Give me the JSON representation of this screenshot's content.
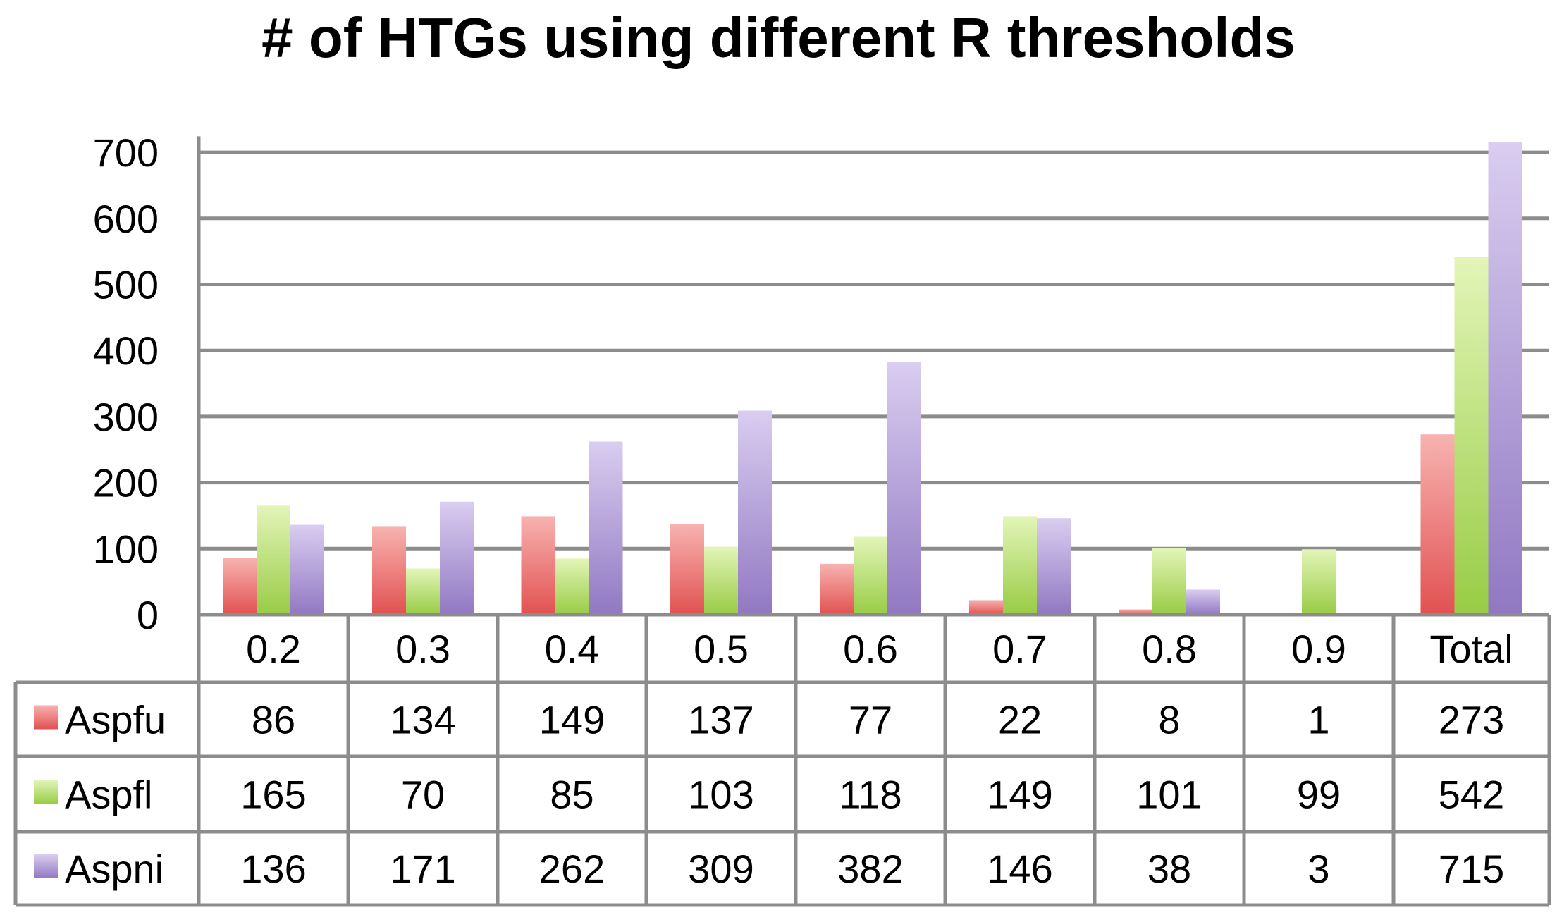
{
  "chart_data": {
    "type": "bar",
    "title": "# of HTGs using different R thresholds",
    "categories": [
      "0.2",
      "0.3",
      "0.4",
      "0.5",
      "0.6",
      "0.7",
      "0.8",
      "0.9",
      "Total"
    ],
    "series": [
      {
        "name": "Aspfu",
        "values": [
          86,
          134,
          149,
          137,
          77,
          22,
          8,
          1,
          273
        ],
        "color": "#e8605f"
      },
      {
        "name": "Aspfl",
        "values": [
          165,
          70,
          85,
          103,
          118,
          149,
          101,
          99,
          542
        ],
        "color": "#a8d65c"
      },
      {
        "name": "Aspni",
        "values": [
          136,
          171,
          262,
          309,
          382,
          146,
          38,
          3,
          715
        ],
        "color": "#a48bd0"
      }
    ],
    "y_ticks": [
      "0",
      "100",
      "200",
      "300",
      "400",
      "500",
      "600",
      "700"
    ],
    "ylim": [
      0,
      720
    ],
    "grid": true,
    "legend": "data-table"
  }
}
